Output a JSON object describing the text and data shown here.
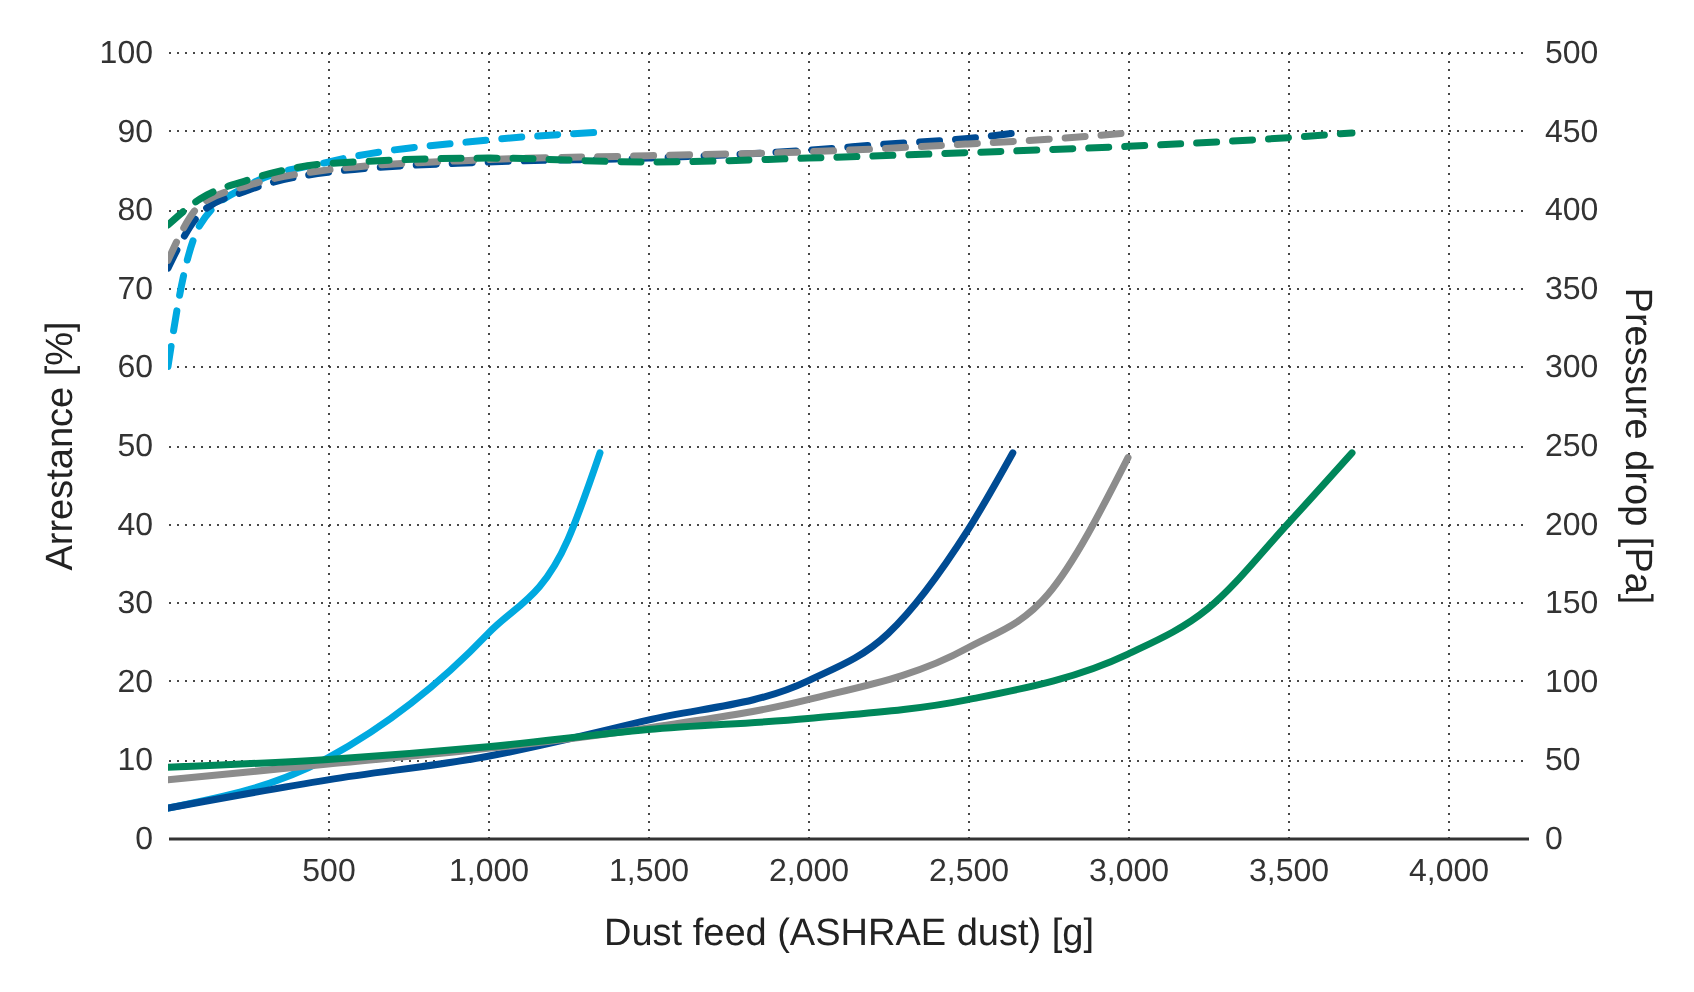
{
  "chart_data": {
    "type": "line",
    "xlabel": "Dust feed (ASHRAE dust) [g]",
    "ylabel": "Arrestance [%]",
    "y2label": "Pressure drop [Pa]",
    "xlim": [
      0,
      4250
    ],
    "xticks": [
      {
        "value": 500,
        "label": "500"
      },
      {
        "value": 1000,
        "label": "1,000"
      },
      {
        "value": 1500,
        "label": "1,500"
      },
      {
        "value": 2000,
        "label": "2,000"
      },
      {
        "value": 2500,
        "label": "2,500"
      },
      {
        "value": 3000,
        "label": "3,000"
      },
      {
        "value": 3500,
        "label": "3,500"
      },
      {
        "value": 4000,
        "label": "4,000"
      }
    ],
    "ylim": [
      0,
      100
    ],
    "yticks": [
      0,
      10,
      20,
      30,
      40,
      50,
      60,
      70,
      80,
      90,
      100
    ],
    "y2lim": [
      0,
      500
    ],
    "y2ticks": [
      0,
      50,
      100,
      150,
      200,
      250,
      300,
      350,
      400,
      450,
      500
    ],
    "grid": true,
    "line_style": "solid",
    "series": [
      {
        "color": "#00a9e0",
        "line_style": "dashed",
        "x": [
          0,
          50,
          100,
          250,
          500,
          1000,
          1350
        ],
        "values": [
          60,
          71.8,
          78,
          83,
          86,
          88.8,
          89.8
        ]
      },
      {
        "color": "#004b93",
        "line_style": "dashed",
        "x": [
          0,
          100,
          250,
          500,
          1000,
          1500,
          2000,
          2250,
          2500,
          2650
        ],
        "values": [
          72.5,
          79.4,
          82.4,
          84.7,
          86,
          86.5,
          87.5,
          88.3,
          89,
          89.7
        ]
      },
      {
        "color": "#8c8c8c",
        "line_style": "dashed",
        "x": [
          0,
          100,
          250,
          500,
          1000,
          1500,
          2000,
          2500,
          2750,
          3000
        ],
        "values": [
          73.5,
          80.5,
          83,
          85,
          86.3,
          86.8,
          87.3,
          88.3,
          88.9,
          89.7
        ]
      },
      {
        "color": "#00875a",
        "line_style": "dashed",
        "x": [
          0,
          100,
          250,
          500,
          1000,
          1500,
          2000,
          2500,
          3000,
          3500,
          3700
        ],
        "values": [
          78,
          81.3,
          83.7,
          85.8,
          86.5,
          86,
          86.5,
          87.2,
          88,
          89.1,
          89.7
        ]
      },
      {
        "color": "#00a9e0",
        "axis": "y2",
        "x": [
          0,
          500,
          1000,
          1250,
          1350
        ],
        "values": [
          19,
          51,
          130,
          190,
          245
        ]
      },
      {
        "color": "#004b93",
        "axis": "y2",
        "x": [
          0,
          500,
          1000,
          1500,
          2000,
          2250,
          2500,
          2640
        ],
        "values": [
          19,
          37,
          52,
          75,
          100,
          130,
          196,
          245
        ]
      },
      {
        "color": "#8c8c8c",
        "axis": "y2",
        "x": [
          0,
          500,
          1000,
          1500,
          2000,
          2500,
          2750,
          3000
        ],
        "values": [
          37,
          47,
          57,
          70,
          88,
          121,
          155,
          242
        ]
      },
      {
        "color": "#00875a",
        "axis": "y2",
        "x": [
          0,
          500,
          1000,
          1500,
          2000,
          2500,
          3000,
          3250,
          3500,
          3700
        ],
        "values": [
          45,
          50,
          58,
          69,
          76,
          88,
          117,
          146,
          200,
          245
        ]
      }
    ]
  }
}
